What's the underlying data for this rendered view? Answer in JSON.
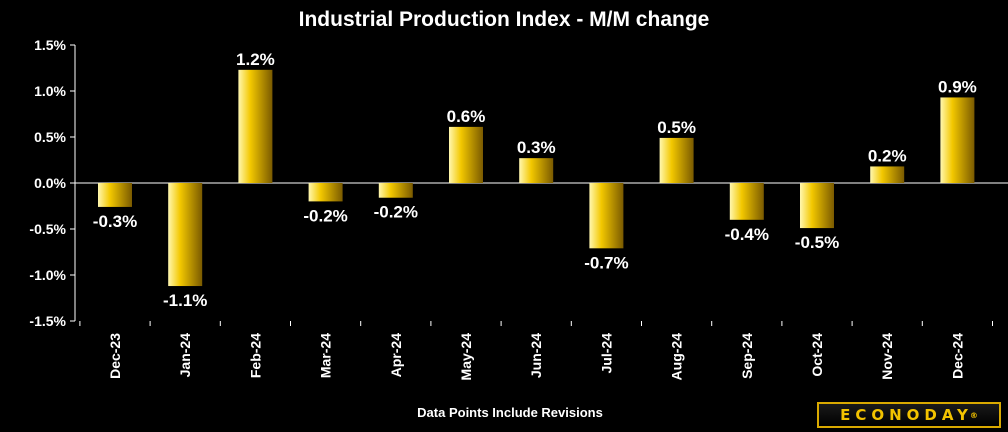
{
  "chart_data": {
    "type": "bar",
    "title": "Industrial Production Index - M/M change",
    "categories": [
      "Dec-23",
      "Jan-24",
      "Feb-24",
      "Mar-24",
      "Apr-24",
      "May-24",
      "Jun-24",
      "Jul-24",
      "Aug-24",
      "Sep-24",
      "Oct-24",
      "Nov-24",
      "Dec-24"
    ],
    "values": [
      -0.26,
      -1.12,
      1.23,
      -0.2,
      -0.16,
      0.61,
      0.27,
      -0.71,
      0.49,
      -0.4,
      -0.49,
      0.18,
      0.93
    ],
    "data_labels": [
      "-0.3%",
      "-1.1%",
      "1.2%",
      "-0.2%",
      "-0.2%",
      "0.6%",
      "0.3%",
      "-0.7%",
      "0.5%",
      "-0.4%",
      "-0.5%",
      "0.2%",
      "0.9%"
    ],
    "y_ticks": [
      1.5,
      1.0,
      0.5,
      0.0,
      -0.5,
      -1.0,
      -1.5
    ],
    "y_tick_labels": [
      "1.5%",
      "1.0%",
      "0.5%",
      "0.0%",
      "-0.5%",
      "-1.0%",
      "-1.5%"
    ],
    "ylim": [
      -1.5,
      1.5
    ],
    "xlabel": "",
    "ylabel": "",
    "grid": false,
    "legend": "none",
    "colors": {
      "background": "#000000",
      "bar_light": "#fff7b0",
      "bar_mid": "#f3c800",
      "bar_dark": "#7a5a00",
      "text": "#ffffff"
    }
  },
  "footnote": "Data Points Include Revisions",
  "logo": {
    "text": "ECONODAY",
    "mark": "®"
  }
}
